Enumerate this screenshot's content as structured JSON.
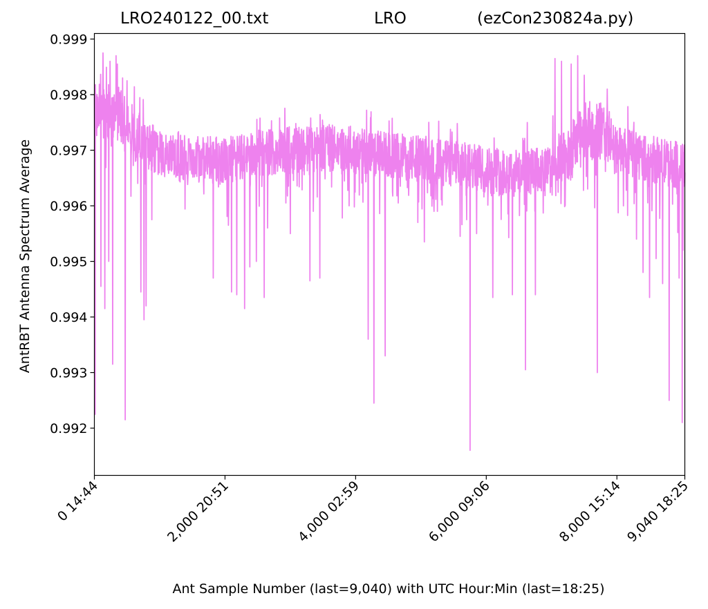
{
  "chart_data": {
    "type": "line",
    "title_left": "LRO240122_00.txt",
    "title_center": "LRO",
    "title_right": "(ezCon230824a.py)",
    "xlabel": "Ant Sample Number (last=9,040) with UTC Hour:Min (last=18:25)",
    "ylabel": "AntRBT Antenna Spectrum Average",
    "xlim": [
      0,
      9040
    ],
    "ylim": [
      0.99115,
      0.9991
    ],
    "x_ticks": [
      {
        "value": 0,
        "label": "0  14:44"
      },
      {
        "value": 2000,
        "label": "2,000  20:51"
      },
      {
        "value": 4000,
        "label": "4,000  02:59"
      },
      {
        "value": 6000,
        "label": "6,000  09:06"
      },
      {
        "value": 8000,
        "label": "8,000  15:14"
      },
      {
        "value": 9040,
        "label": "9,040  18:25"
      }
    ],
    "y_ticks": [
      0.992,
      0.993,
      0.994,
      0.995,
      0.996,
      0.997,
      0.998,
      0.999
    ],
    "grid": false,
    "color": "#ee82ee",
    "series": [
      {
        "baseline": [
          [
            0,
            0.99775
          ],
          [
            400,
            0.9976
          ],
          [
            600,
            0.9973
          ],
          [
            800,
            0.9971
          ],
          [
            1000,
            0.99695
          ],
          [
            1500,
            0.99685
          ],
          [
            2000,
            0.9968
          ],
          [
            2500,
            0.99695
          ],
          [
            3000,
            0.997
          ],
          [
            3500,
            0.99705
          ],
          [
            4000,
            0.997
          ],
          [
            4500,
            0.9969
          ],
          [
            5000,
            0.99685
          ],
          [
            5500,
            0.99675
          ],
          [
            6000,
            0.99665
          ],
          [
            6500,
            0.9966
          ],
          [
            7000,
            0.99665
          ],
          [
            7200,
            0.9968
          ],
          [
            7500,
            0.99735
          ],
          [
            7800,
            0.99735
          ],
          [
            8000,
            0.997
          ],
          [
            8500,
            0.99685
          ],
          [
            9040,
            0.9967
          ]
        ],
        "dips": [
          [
            10,
            0.99225
          ],
          [
            100,
            0.99455
          ],
          [
            160,
            0.99415
          ],
          [
            220,
            0.995
          ],
          [
            280,
            0.99315
          ],
          [
            470,
            0.99215
          ],
          [
            500,
            0.99385
          ],
          [
            710,
            0.99445
          ],
          [
            760,
            0.99395
          ],
          [
            790,
            0.9942
          ],
          [
            880,
            0.99575
          ],
          [
            1300,
            0.99645
          ],
          [
            1820,
            0.9947
          ],
          [
            2050,
            0.99565
          ],
          [
            2100,
            0.99445
          ],
          [
            2180,
            0.9944
          ],
          [
            2300,
            0.99415
          ],
          [
            2380,
            0.9949
          ],
          [
            2480,
            0.995
          ],
          [
            2600,
            0.99435
          ],
          [
            2650,
            0.9956
          ],
          [
            3000,
            0.9955
          ],
          [
            3300,
            0.99465
          ],
          [
            3350,
            0.9959
          ],
          [
            3450,
            0.9961
          ],
          [
            3450,
            0.9947
          ],
          [
            3900,
            0.996
          ],
          [
            4190,
            0.9936
          ],
          [
            4280,
            0.99245
          ],
          [
            4450,
            0.9933
          ],
          [
            4650,
            0.99605
          ],
          [
            4950,
            0.9957
          ],
          [
            5050,
            0.99535
          ],
          [
            5200,
            0.9959
          ],
          [
            5250,
            0.9959
          ],
          [
            5600,
            0.99545
          ],
          [
            5700,
            0.99575
          ],
          [
            5750,
            0.9916
          ],
          [
            5850,
            0.9955
          ],
          [
            6100,
            0.99435
          ],
          [
            6400,
            0.9944
          ],
          [
            6600,
            0.99305
          ],
          [
            6750,
            0.9944
          ],
          [
            7050,
            0.99575
          ],
          [
            7550,
            0.9963
          ],
          [
            7700,
            0.993
          ],
          [
            8100,
            0.996
          ],
          [
            8300,
            0.9954
          ],
          [
            8400,
            0.9948
          ],
          [
            8500,
            0.99435
          ],
          [
            8600,
            0.99505
          ],
          [
            8700,
            0.9946
          ],
          [
            8800,
            0.9925
          ],
          [
            8950,
            0.9947
          ],
          [
            9000,
            0.9921
          ],
          [
            9010,
            0.9952
          ]
        ],
        "peaks": [
          [
            130,
            0.99875
          ],
          [
            240,
            0.9986
          ],
          [
            330,
            0.9987
          ],
          [
            350,
            0.99855
          ],
          [
            430,
            0.9983
          ],
          [
            500,
            0.99825
          ],
          [
            7050,
            0.99865
          ],
          [
            7150,
            0.9986
          ],
          [
            7300,
            0.99855
          ],
          [
            7400,
            0.9987
          ],
          [
            7500,
            0.99835
          ],
          [
            7850,
            0.9981
          ]
        ]
      }
    ]
  }
}
